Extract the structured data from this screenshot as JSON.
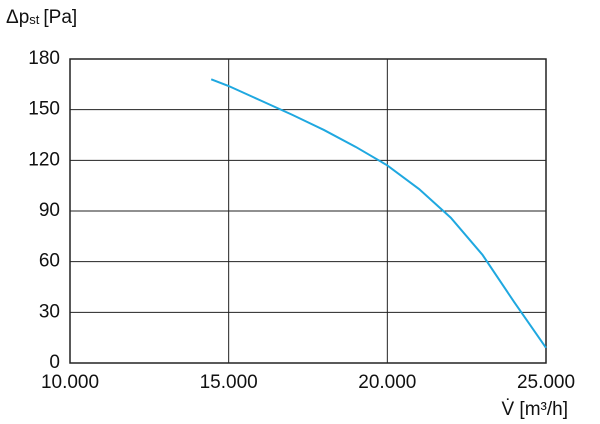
{
  "chart_data": {
    "type": "line",
    "y_label": {
      "symbol": "Δp",
      "subscript": "st",
      "unit": "[Pa]"
    },
    "x_label": "V̇ [m³/h]",
    "x": [
      14450,
      15000,
      16000,
      17000,
      18000,
      19000,
      20000,
      21000,
      22000,
      23000,
      24000,
      25000
    ],
    "series": [
      {
        "color": "#1fa8e0",
        "values": [
          168,
          164,
          155.5,
          147,
          138,
          128,
          117,
          103,
          86,
          64,
          36,
          9
        ]
      }
    ],
    "xlim": [
      10000,
      25000
    ],
    "xticks": [
      {
        "value": 10000,
        "label": "10.000"
      },
      {
        "value": 15000,
        "label": "15.000"
      },
      {
        "value": 20000,
        "label": "20.000"
      },
      {
        "value": 25000,
        "label": "25.000"
      }
    ],
    "ylim": [
      0,
      180
    ],
    "yticks": [
      0,
      30,
      60,
      90,
      120,
      150,
      180
    ],
    "grid": true
  }
}
